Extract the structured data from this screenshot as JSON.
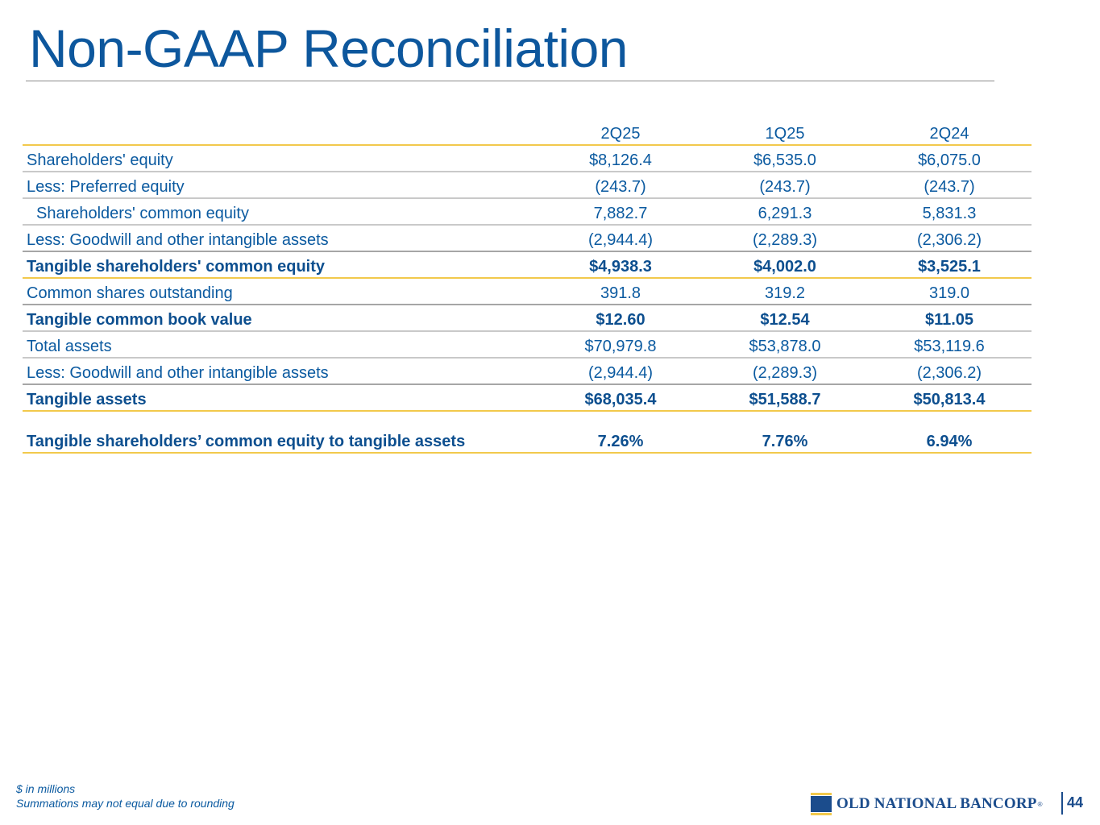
{
  "slide": {
    "title": "Non-GAAP Reconciliation",
    "page_number": "44"
  },
  "table": {
    "columns": [
      "2Q25",
      "1Q25",
      "2Q24"
    ],
    "rows": [
      {
        "label": "Shareholders' equity",
        "values": [
          "$8,126.4",
          "$6,535.0",
          "$6,075.0"
        ]
      },
      {
        "label": "Less: Preferred equity",
        "values": [
          "(243.7)",
          "(243.7)",
          "(243.7)"
        ]
      },
      {
        "label": "Shareholders' common equity",
        "values": [
          "7,882.7",
          "6,291.3",
          "5,831.3"
        ]
      },
      {
        "label": "Less: Goodwill and other intangible assets",
        "values": [
          "(2,944.4)",
          "(2,289.3)",
          "(2,306.2)"
        ]
      },
      {
        "label": "Tangible shareholders' common equity",
        "values": [
          "$4,938.3",
          "$4,002.0",
          "$3,525.1"
        ]
      },
      {
        "label": "Common shares outstanding",
        "values": [
          "391.8",
          "319.2",
          "319.0"
        ]
      },
      {
        "label": "Tangible common book value",
        "values": [
          "$12.60",
          "$12.54",
          "$11.05"
        ]
      },
      {
        "label": "Total assets",
        "values": [
          "$70,979.8",
          "$53,878.0",
          "$53,119.6"
        ]
      },
      {
        "label": "Less: Goodwill and other intangible assets",
        "values": [
          "(2,944.4)",
          "(2,289.3)",
          "(2,306.2)"
        ]
      },
      {
        "label": "Tangible assets",
        "values": [
          "$68,035.4",
          "$51,588.7",
          "$50,813.4"
        ]
      },
      {
        "label": "Tangible shareholders’ common equity to tangible assets",
        "values": [
          "7.26%",
          "7.76%",
          "6.94%"
        ]
      }
    ]
  },
  "footnotes": {
    "line1": "$ in millions",
    "line2": "Summations may not equal due to rounding"
  },
  "logo": {
    "text": "OLD NATIONAL BANCORP",
    "registered": "®",
    "icon": "old-national-logo-mark"
  },
  "colors": {
    "text_blue": "#0b5aa0",
    "title_blue": "#0d579d",
    "accent_gold": "#f2c94c",
    "rule_gray": "#c9c9c9",
    "brand_navy": "#1b4c8c"
  }
}
